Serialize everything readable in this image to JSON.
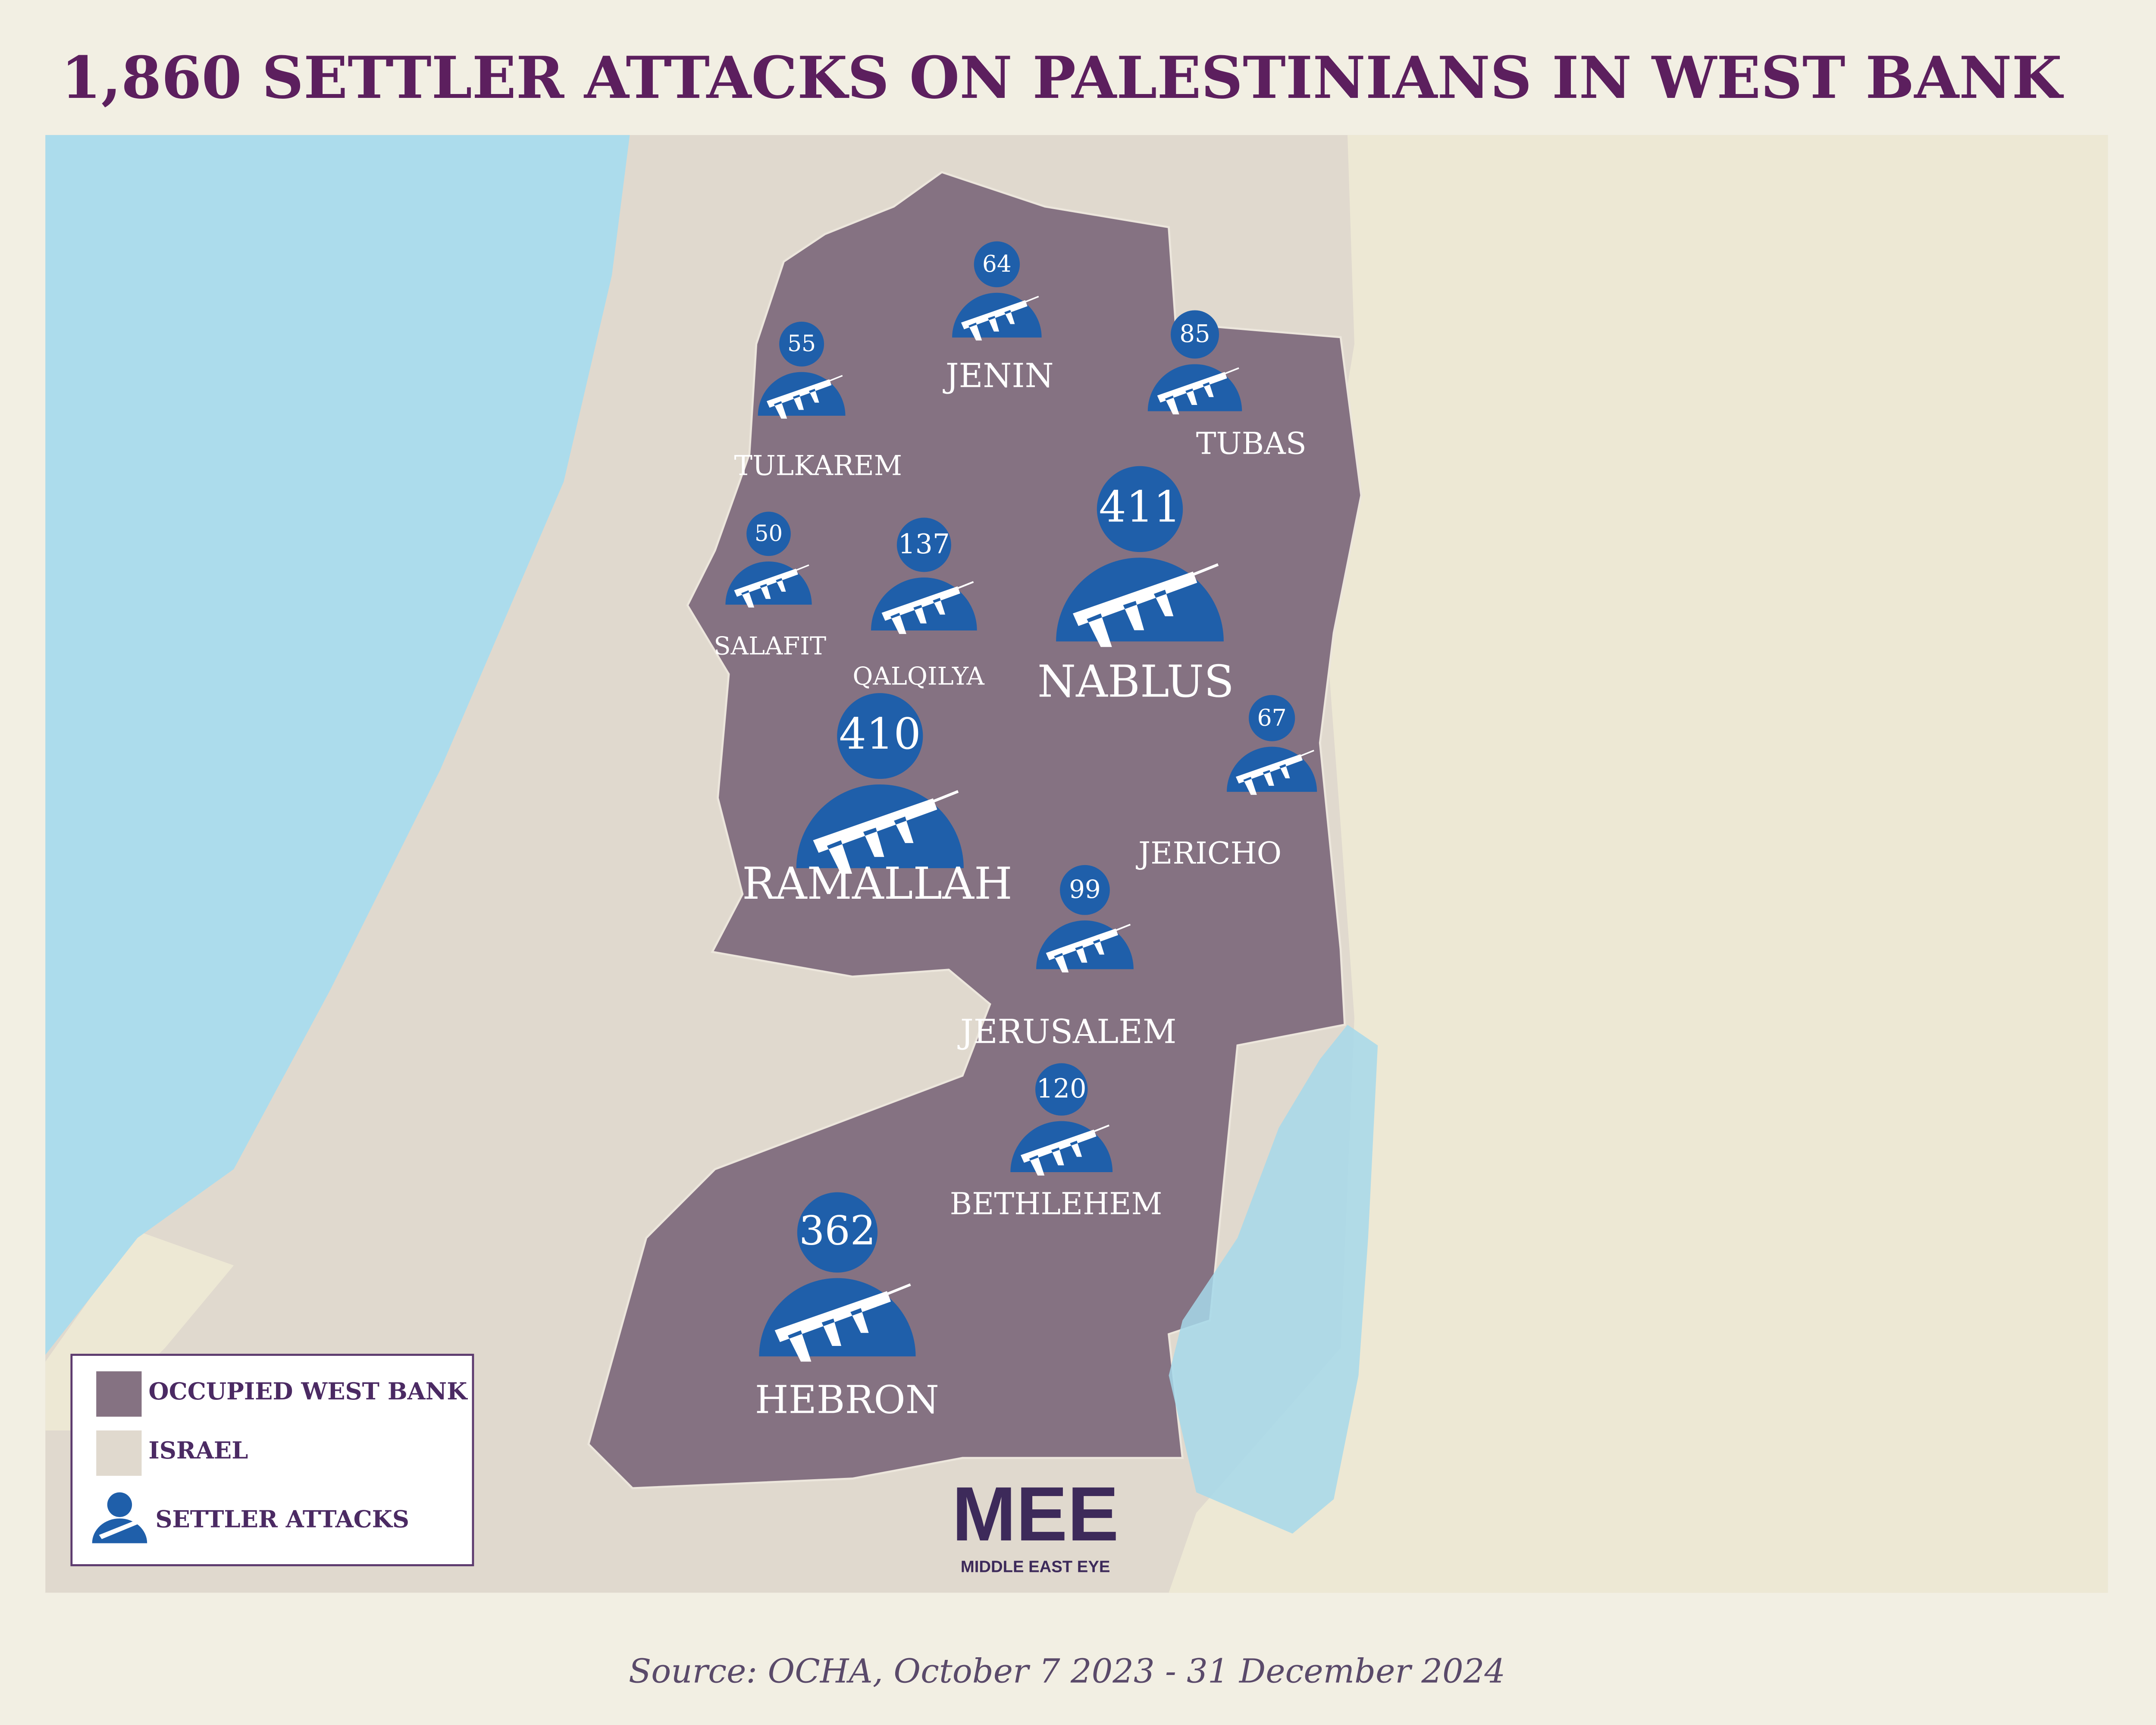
{
  "title": "1,860 SETTLER ATTACKS ON PALESTINIANS IN WEST BANK",
  "map": {
    "regions": [
      {
        "name": "TULKAREM",
        "attacks": 55
      },
      {
        "name": "JENIN",
        "attacks": 64
      },
      {
        "name": "TUBAS",
        "attacks": 85
      },
      {
        "name": "SALAFIT",
        "attacks": 50
      },
      {
        "name": "QALQILYA",
        "attacks": 137
      },
      {
        "name": "NABLUS",
        "attacks": 411
      },
      {
        "name": "JERICHO",
        "attacks": 67
      },
      {
        "name": "RAMALLAH",
        "attacks": 410
      },
      {
        "name": "JERUSALEM",
        "attacks": 99
      },
      {
        "name": "BETHLEHEM",
        "attacks": 120
      },
      {
        "name": "HEBRON",
        "attacks": 362
      }
    ]
  },
  "legend": {
    "items": [
      "OCCUPIED WEST BANK",
      "ISRAEL",
      "SETTLER ATTACKS"
    ]
  },
  "logo": {
    "mark": "MEE",
    "name": "MIDDLE EAST EYE"
  },
  "source": "Source: OCHA, October 7 2023 - 31 December 2024"
}
